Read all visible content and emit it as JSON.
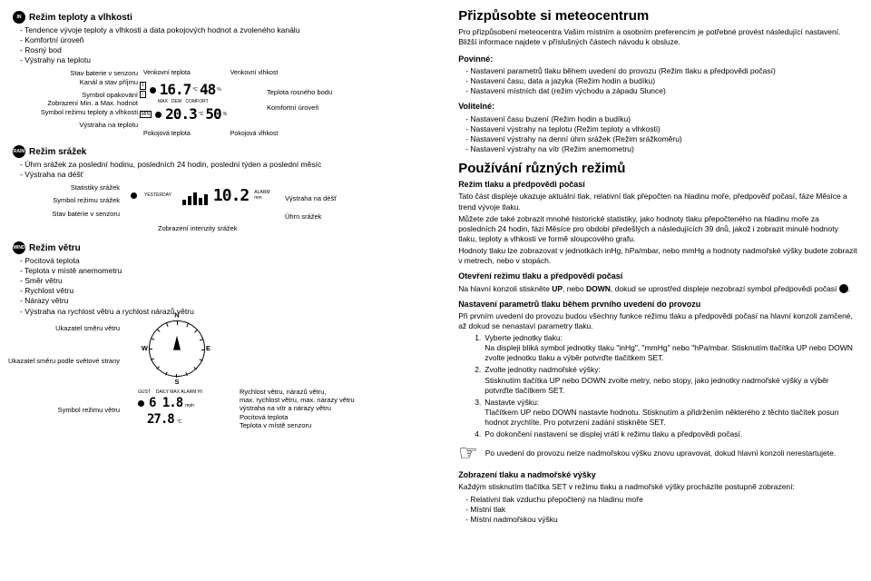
{
  "left": {
    "temp_hum": {
      "icon": "IN",
      "title": "Režim teploty a vlhkosti",
      "bullets": [
        "Tendence vývoje teploty a vlhkosti a data pokojových hodnot a zvoleného kanálu",
        "Komfortní úroveň",
        "Rosný bod",
        "Výstrahy na teplotu"
      ],
      "left_labels": {
        "l1": "Stav baterie v senzoru",
        "l2": "Kanál a stav příjmu",
        "l3": "Symbol opakování",
        "l4": "Zobrazení Min. a Max. hodnot",
        "l5": "Symbol režimu teploty a vlhkosti",
        "l6": "Výstraha na teplotu"
      },
      "top1": "Venkovní teplota",
      "top2": "Venkovní vlhkost",
      "seg_out_temp": "16.7",
      "seg_out_temp_unit": "°C",
      "seg_out_hum": "48",
      "seg_out_hum_unit": "%",
      "seg_in_temp": "20.3",
      "seg_in_temp_unit": "°C",
      "seg_in_hum": "50",
      "seg_in_hum_unit": "%",
      "tiny1": "MAX",
      "tiny2": "MIN",
      "tiny3": "DEW",
      "tiny4": "COMFORT",
      "tiny5": "STATUS",
      "right1": "Teplota rosného bodu",
      "right2": "Komfortní úroveň",
      "bot1": "Pokojová teplota",
      "bot2": "Pokojová vlhkost"
    },
    "rain": {
      "icon": "RAIN",
      "title": "Režim srážek",
      "bullets": [
        "Úhrn srážek za poslední hodinu, posledních 24 hodin, poslední týden a poslední měsíc",
        "Výstraha na déšť"
      ],
      "left_labels": {
        "l1": "Statistiky srážek",
        "l2": "Symbol režimu srážek",
        "l3": "Stav baterie v senzoru"
      },
      "yesterday": "YESTERDAY",
      "seg_rain": "10.2",
      "alarm": "ALARM",
      "unit": "mm",
      "right1": "Výstraha na déšť",
      "right2": "Úhrn srážek",
      "intensity": "Zobrazení intenzity srážek"
    },
    "wind": {
      "icon": "WIND",
      "title": "Režim větru",
      "bullets": [
        "Pocitová teplota",
        "Teplota v místě anemometru",
        "Směr větru",
        "Rychlost větru",
        "Nárazy větru",
        "Výstraha na rychlost větru a rychlost nárazů větru"
      ],
      "ptr1": "Ukazatel směru větru",
      "ptr2": "Ukazatel směru podle světové strany",
      "ptr3": "Symbol režimu větru",
      "N": "N",
      "S": "S",
      "W": "W",
      "E": "E",
      "gust": "GUST",
      "daily": "DAILY MAX ALARM HI",
      "seg_speed": "6 1.8",
      "seg_unit": "mph",
      "seg_temp": "27.8",
      "seg_temp_unit": "°C",
      "r1": "Rychlost větru, nárazů větru,",
      "r2": "max. rychlost větru, max. nárazy větru",
      "r3": "výstraha na vítr a nárazy větru",
      "r4": "Pocitová teplota",
      "r5": "Teplota v místě senzoru"
    }
  },
  "right": {
    "h1": "Přizpůsobte si meteocentrum",
    "intro": "Pro přizpůsobení meteocentra Vašim místním a osobním preferencím je potřebné provést následující nastavení. Bližší informace najdete v příslušných částech návodu k obsluze.",
    "mand_title": "Povinné:",
    "mand": [
      "Nastavení parametrů tlaku během uvedení do provozu (Režim tlaku a předpovědi počasí)",
      "Nastavení času, data a jazyka (Režim hodin a budíku)",
      "Nastavení místních dat (režim východu a západu Slunce)"
    ],
    "opt_title": "Volitelné:",
    "opt": [
      "Nastavení času buzení (Režim hodin a budíku)",
      "Nastavení výstrahy na teplotu (Režim teploty a vlhkosti)",
      "Nastavení výstrahy na denní úhrn srážek (Režim srážkoměru)",
      "Nastavení výstrahy na vítr (Režim anemometru)"
    ],
    "h2": "Používání různých režimů",
    "sub1": "Režim tlaku a předpovědi počasí",
    "p1": "Tato část displeje ukazuje aktuální tlak, relativní tlak přepočten na hladinu moře, předpověď počasí, fáze Měsíce a trend vývoje tlaku.",
    "p2": "Můžete zde také zobrazit mnohé historické statistiky, jako hodnoty tlaku přepočteného na hladinu moře za posledních 24 hodin, fázi Měsíce pro období předešlých a následujících 39 dnů, jakož i zobrazit minulé hodnoty tlaku, teploty a vlhkosti ve formě sloupcového grafu.",
    "p3": "Hodnoty tlaku lze zobrazovat v jednotkách inHg, hPa/mbar, nebo mmHg a hodnoty nadmořské výšky budete zobrazit v metrech, nebo v stopách.",
    "sub2": "Otevření režimu tlaku a předpovědi počasí",
    "p4a": "Na hlavní konzoli stiskněte ",
    "p4_up": "UP",
    "p4_mid": ", nebo ",
    "p4_down": "DOWN",
    "p4b": ", dokud se uprostřed displeje nezobrazí symbol předpovědi počasí ",
    "sub3": "Nastavení parametrů tlaku během prvního uvedení do provozu",
    "p5": "Při prvním uvedení do provozu budou všechny funkce režimu tlaku a předpovědi počasí na hlavní konzoli zamčené, až dokud se nenastaví parametry tlaku.",
    "steps": [
      {
        "n": "1.",
        "t": "Vyberte jednotky tlaku:\nNa displeji bliká symbol jednotky tlaku \"inHg\", \"mmHg\" nebo \"hPa/mbar. Stisknutím tlačítka UP nebo DOWN zvolte jednotku tlaku a výběr potvrďte tlačítkem SET."
      },
      {
        "n": "2.",
        "t": "Zvolte jednotky nadmořské výšky:\nStisknutím tlačítka UP nebo DOWN zvolte metry, nebo stopy, jako jednotky nadmořské výšky a výběr potvrďte tlačítkem SET."
      },
      {
        "n": "3.",
        "t": "Nastavte výšku:\nTlačítkem UP nebo DOWN nastavte hodnotu. Stisknutím a přidržením některého z těchto tlačítek posun hodnot zrychlíte. Pro potvrzení zadání stiskněte SET."
      },
      {
        "n": "4.",
        "t": "Po dokončení nastavení se displej vrátí k režimu tlaku a předpovědi počasí."
      }
    ],
    "note": "Po uvedení do provozu nelze nadmořskou výšku znovu upravovat, dokud hlavní konzoli nerestartujete.",
    "sub4": "Zobrazení tlaku a nadmořské výšky",
    "p6": "Každým stisknutím tlačítka SET v režimu tlaku a nadmořské výšky procházíte postupně zobrazení:",
    "alts": [
      "Relativní tlak vzduchu přepočtený na hladinu moře",
      "Místní tlak",
      "Místní nadmořskou výšku"
    ]
  }
}
